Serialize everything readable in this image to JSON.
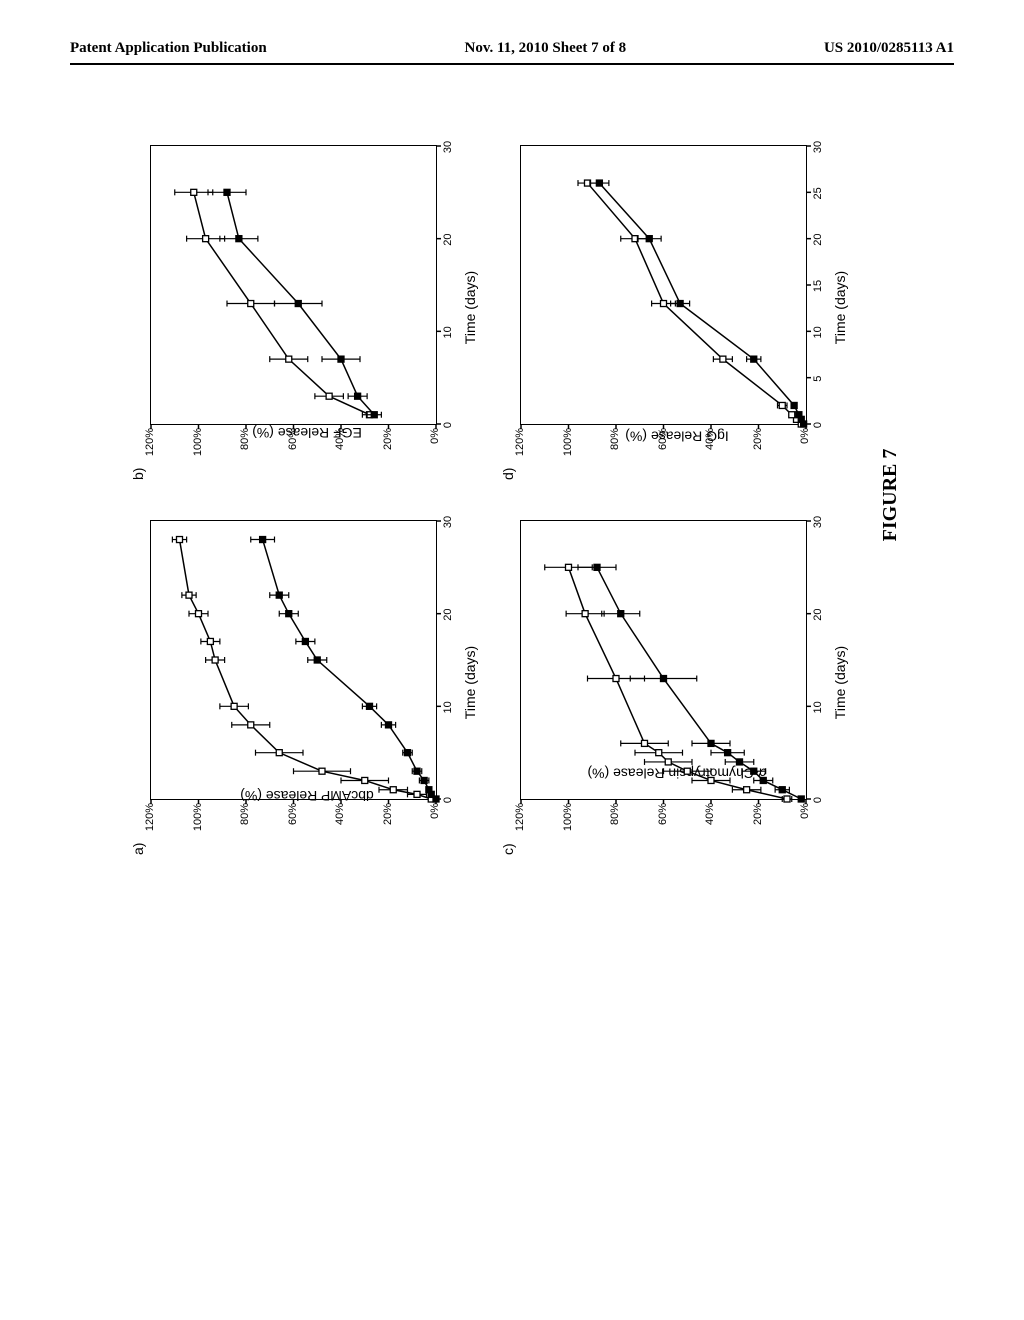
{
  "header": {
    "left": "Patent Application Publication",
    "center": "Nov. 11, 2010  Sheet 7 of 8",
    "right": "US 2010/0285113 A1"
  },
  "figure_caption": "FIGURE 7",
  "axes": {
    "y_ticks_pct": [
      "0%",
      "20%",
      "40%",
      "60%",
      "80%",
      "100%",
      "120%"
    ],
    "y_tick_values": [
      0,
      20,
      40,
      60,
      80,
      100,
      120
    ],
    "ylim": [
      0,
      120
    ]
  },
  "styling": {
    "background_color": "#ffffff",
    "axis_color": "#000000",
    "line_color": "#000000",
    "line_width": 1.5,
    "marker_open_fill": "#ffffff",
    "marker_filled_fill": "#000000",
    "marker_stroke": "#000000",
    "marker_size": 6,
    "error_cap_width": 6,
    "font_family_axis": "Arial, sans-serif",
    "font_family_caption": "Times New Roman, serif",
    "label_fontsize": 14,
    "tick_fontsize": 11,
    "caption_fontsize": 20
  },
  "panels": {
    "a": {
      "label": "a)",
      "ylabel": "dbcAMP Release (%)",
      "xlabel": "Time (days)",
      "xlim": [
        0,
        30
      ],
      "x_ticks": [
        0,
        10,
        20,
        30
      ],
      "series": [
        {
          "marker": "open-square",
          "x": [
            0,
            0.5,
            1,
            2,
            3,
            5,
            8,
            10,
            15,
            17,
            20,
            22,
            28
          ],
          "y": [
            2,
            8,
            18,
            30,
            48,
            66,
            78,
            85,
            93,
            95,
            100,
            104,
            108
          ],
          "err": [
            0,
            4,
            6,
            10,
            12,
            10,
            8,
            6,
            4,
            4,
            4,
            3,
            3
          ]
        },
        {
          "marker": "filled-square",
          "x": [
            0,
            0.5,
            1,
            2,
            3,
            5,
            8,
            10,
            15,
            17,
            20,
            22,
            28
          ],
          "y": [
            0,
            2,
            3,
            5,
            8,
            12,
            20,
            28,
            50,
            55,
            62,
            66,
            73
          ],
          "err": [
            0,
            1,
            1,
            2,
            2,
            2,
            3,
            3,
            4,
            4,
            4,
            4,
            5
          ]
        }
      ]
    },
    "b": {
      "label": "b)",
      "ylabel": "EGF Release (%)",
      "xlabel": "Time (days)",
      "xlim": [
        0,
        30
      ],
      "x_ticks": [
        0,
        10,
        20,
        30
      ],
      "series": [
        {
          "marker": "open-square",
          "x": [
            1,
            3,
            7,
            13,
            20,
            25
          ],
          "y": [
            28,
            45,
            62,
            78,
            97,
            102
          ],
          "err": [
            3,
            6,
            8,
            10,
            8,
            8
          ]
        },
        {
          "marker": "filled-square",
          "x": [
            1,
            3,
            7,
            13,
            20,
            25
          ],
          "y": [
            26,
            33,
            40,
            58,
            83,
            88
          ],
          "err": [
            3,
            4,
            8,
            10,
            8,
            8
          ]
        }
      ]
    },
    "c": {
      "label": "c)",
      "ylabel_html": "<span class='alpha'>α</span>-Chymotrypsin Release (%)",
      "ylabel": "α-Chymotrypsin Release (%)",
      "xlabel": "Time (days)",
      "xlim": [
        0,
        30
      ],
      "x_ticks": [
        0,
        10,
        20,
        30
      ],
      "series": [
        {
          "marker": "open-square",
          "x": [
            0,
            1,
            2,
            3,
            4,
            5,
            6,
            13,
            20,
            25
          ],
          "y": [
            8,
            25,
            40,
            50,
            58,
            62,
            68,
            80,
            93,
            100
          ],
          "err": [
            2,
            6,
            8,
            10,
            10,
            10,
            10,
            12,
            8,
            10
          ]
        },
        {
          "marker": "filled-square",
          "x": [
            0,
            1,
            2,
            3,
            4,
            5,
            6,
            13,
            20,
            25
          ],
          "y": [
            2,
            10,
            18,
            22,
            28,
            33,
            40,
            60,
            78,
            88
          ],
          "err": [
            1,
            3,
            4,
            5,
            6,
            7,
            8,
            14,
            8,
            8
          ]
        }
      ]
    },
    "d": {
      "label": "d)",
      "ylabel": "IgG Release (%)",
      "xlabel": "Time (days)",
      "xlim": [
        0,
        30
      ],
      "x_ticks": [
        0,
        5,
        10,
        15,
        20,
        25,
        30
      ],
      "series": [
        {
          "marker": "open-square",
          "x": [
            0,
            0.5,
            1,
            2,
            7,
            13,
            20,
            26
          ],
          "y": [
            2,
            4,
            6,
            10,
            35,
            60,
            72,
            92
          ],
          "err": [
            1,
            1,
            1,
            2,
            4,
            5,
            6,
            4
          ]
        },
        {
          "marker": "filled-square",
          "x": [
            0,
            0.5,
            1,
            2,
            7,
            13,
            20,
            26
          ],
          "y": [
            1,
            2,
            3,
            5,
            22,
            53,
            66,
            87
          ],
          "err": [
            1,
            1,
            1,
            1,
            3,
            4,
            5,
            4
          ]
        }
      ]
    }
  }
}
